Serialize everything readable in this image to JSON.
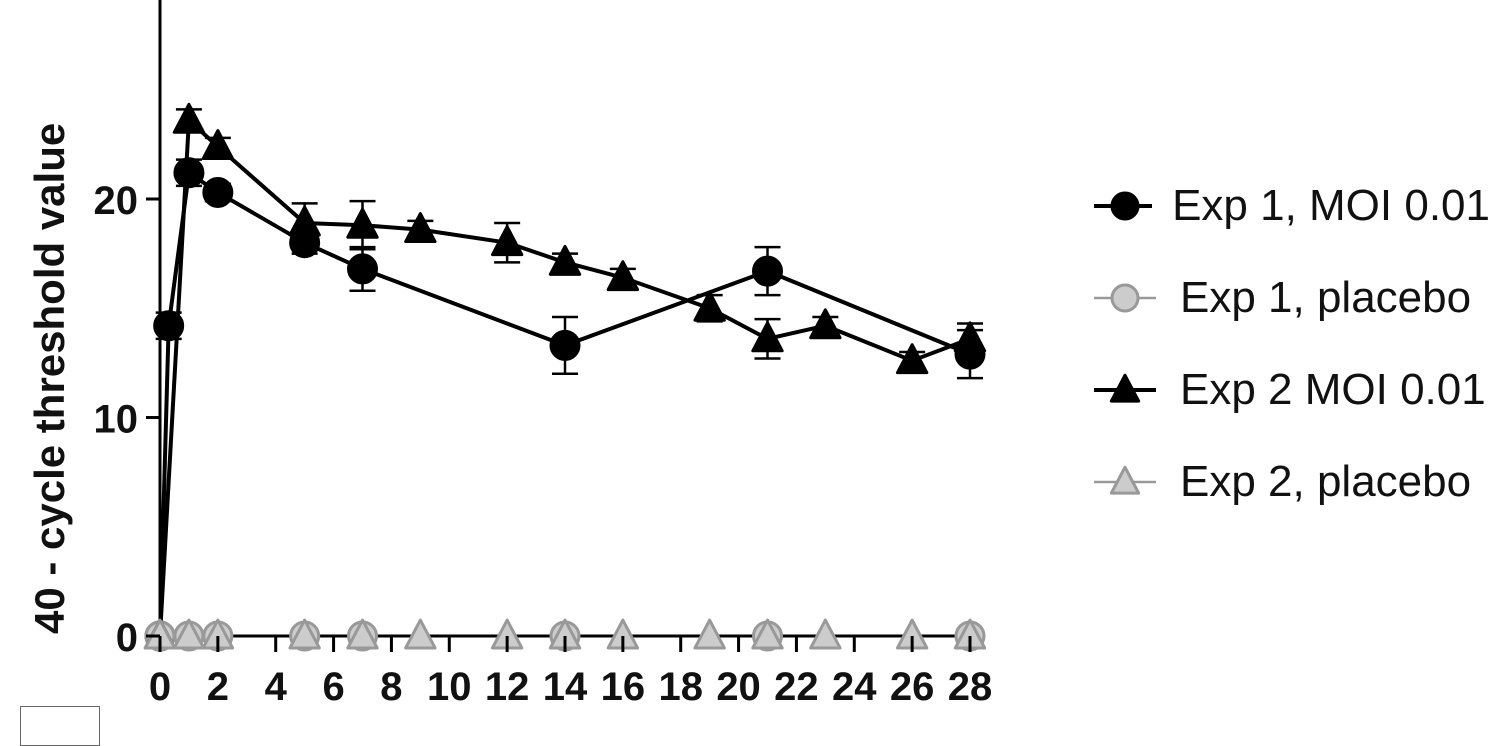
{
  "chart_data": {
    "type": "line",
    "xlabel": "",
    "ylabel": "40 - cycle threshold value",
    "xlim": [
      0,
      28
    ],
    "ylim": [
      0,
      30
    ],
    "x_ticks": [
      0,
      2,
      4,
      6,
      8,
      10,
      12,
      14,
      16,
      18,
      20,
      22,
      24,
      26,
      28
    ],
    "x_tick_labels": [
      "0",
      "2",
      "4",
      "6",
      "8",
      "10",
      "12",
      "14",
      "16",
      "18",
      "20",
      "22",
      "24",
      "26",
      "28"
    ],
    "y_ticks": [
      0,
      10,
      20
    ],
    "y_tick_labels": [
      "0",
      "10",
      "20"
    ],
    "grid": false,
    "legend_position": "right",
    "series": [
      {
        "name": "Exp 1, MOI 0.01",
        "marker": "circle",
        "color": "#000000",
        "fill": "#000000",
        "points": [
          {
            "x": 0,
            "y": 0
          },
          {
            "x": 0.3,
            "y": 14.2,
            "err": 0.6
          },
          {
            "x": 1,
            "y": 21.2,
            "err": 0.6
          },
          {
            "x": 2,
            "y": 20.3,
            "err": 0.4
          },
          {
            "x": 5,
            "y": 18.0,
            "err": 0.5
          },
          {
            "x": 7,
            "y": 16.8,
            "err": 1.0
          },
          {
            "x": 14,
            "y": 13.3,
            "err": 1.3
          },
          {
            "x": 21,
            "y": 16.7,
            "err": 1.1
          },
          {
            "x": 28,
            "y": 12.9,
            "err": 1.1
          }
        ]
      },
      {
        "name": "Exp 1, placebo",
        "marker": "circle",
        "color": "#888888",
        "fill": "#cccccc",
        "points": [
          {
            "x": 0,
            "y": 0
          },
          {
            "x": 1,
            "y": 0
          },
          {
            "x": 2,
            "y": 0
          },
          {
            "x": 5,
            "y": 0
          },
          {
            "x": 7,
            "y": 0
          },
          {
            "x": 14,
            "y": 0
          },
          {
            "x": 21,
            "y": 0
          },
          {
            "x": 28,
            "y": 0
          }
        ]
      },
      {
        "name": "Exp 2 MOI 0.01",
        "marker": "triangle",
        "color": "#000000",
        "fill": "#000000",
        "points": [
          {
            "x": 0,
            "y": 0
          },
          {
            "x": 1,
            "y": 23.6,
            "err": 0.5
          },
          {
            "x": 2,
            "y": 22.4,
            "err": 0.4
          },
          {
            "x": 5,
            "y": 18.9,
            "err": 0.9
          },
          {
            "x": 7,
            "y": 18.8,
            "err": 1.1
          },
          {
            "x": 9,
            "y": 18.6,
            "err": 0.4
          },
          {
            "x": 12,
            "y": 18.0,
            "err": 0.9
          },
          {
            "x": 14,
            "y": 17.1,
            "err": 0.4
          },
          {
            "x": 16,
            "y": 16.4,
            "err": 0.4
          },
          {
            "x": 19,
            "y": 15.0,
            "err": 0.6
          },
          {
            "x": 21,
            "y": 13.6,
            "err": 0.9
          },
          {
            "x": 23,
            "y": 14.2,
            "err": 0.4
          },
          {
            "x": 26,
            "y": 12.6,
            "err": 0.4
          },
          {
            "x": 28,
            "y": 13.6,
            "err": 0.7
          }
        ]
      },
      {
        "name": "Exp 2, placebo",
        "marker": "triangle",
        "color": "#888888",
        "fill": "#cccccc",
        "points": [
          {
            "x": 0,
            "y": 0
          },
          {
            "x": 1,
            "y": 0
          },
          {
            "x": 2,
            "y": 0
          },
          {
            "x": 5,
            "y": 0
          },
          {
            "x": 7,
            "y": 0
          },
          {
            "x": 9,
            "y": 0
          },
          {
            "x": 12,
            "y": 0
          },
          {
            "x": 14,
            "y": 0
          },
          {
            "x": 16,
            "y": 0
          },
          {
            "x": 19,
            "y": 0
          },
          {
            "x": 21,
            "y": 0
          },
          {
            "x": 23,
            "y": 0
          },
          {
            "x": 26,
            "y": 0
          },
          {
            "x": 28,
            "y": 0
          }
        ]
      }
    ]
  }
}
